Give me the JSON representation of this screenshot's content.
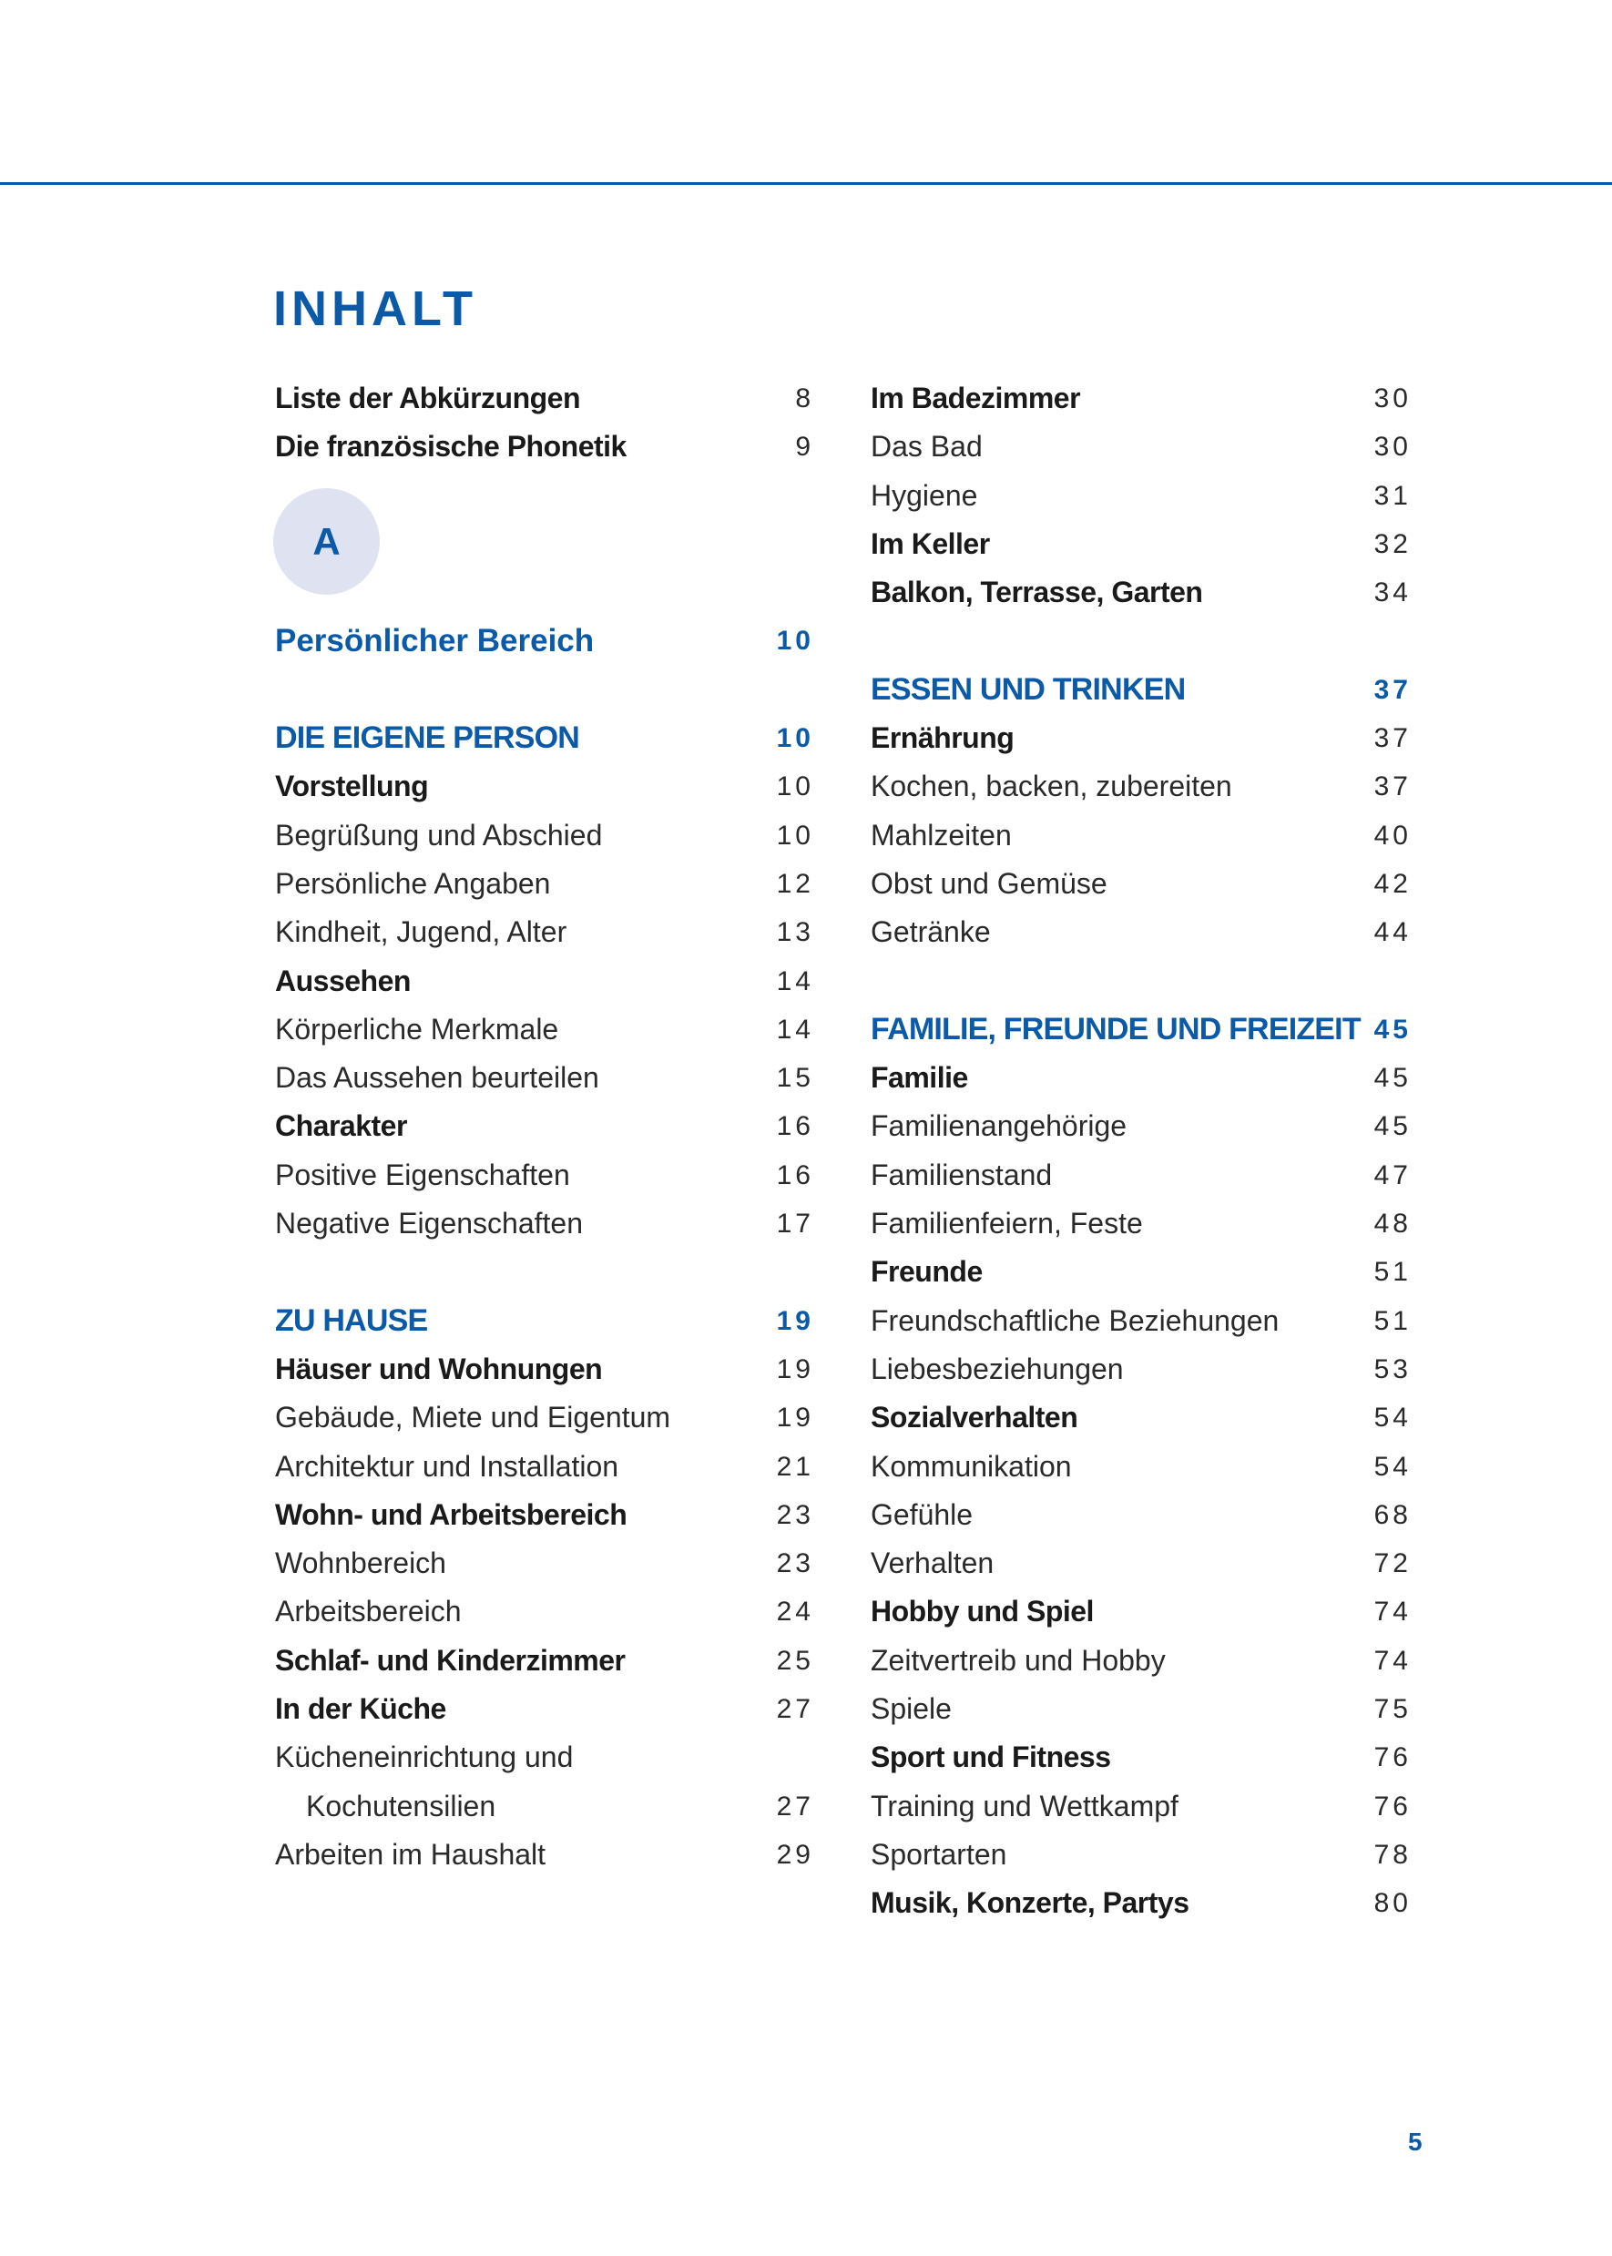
{
  "title": "INHALT",
  "accent_color": "#0b5aa8",
  "part_badge": "A",
  "page_number": "5",
  "left_column": [
    {
      "type": "bold",
      "label": "Liste der Abkürzungen",
      "page": "8"
    },
    {
      "type": "bold",
      "label": "Die französische Phonetik",
      "page": "9"
    },
    {
      "type": "badge"
    },
    {
      "type": "part",
      "label": "Persönlicher Bereich",
      "page": "10"
    },
    {
      "type": "spacer"
    },
    {
      "type": "section",
      "label": "DIE EIGENE PERSON",
      "page": "10"
    },
    {
      "type": "bold",
      "label": "Vorstellung",
      "page": "10"
    },
    {
      "type": "plain",
      "label": "Begrüßung und Abschied",
      "page": "10"
    },
    {
      "type": "plain",
      "label": "Persönliche Angaben",
      "page": "12"
    },
    {
      "type": "plain",
      "label": "Kindheit, Jugend, Alter",
      "page": "13"
    },
    {
      "type": "bold",
      "label": "Aussehen",
      "page": "14"
    },
    {
      "type": "plain",
      "label": "Körperliche Merkmale",
      "page": "14"
    },
    {
      "type": "plain",
      "label": "Das Aussehen beurteilen",
      "page": "15"
    },
    {
      "type": "bold",
      "label": "Charakter",
      "page": "16"
    },
    {
      "type": "plain",
      "label": "Positive Eigenschaften",
      "page": "16"
    },
    {
      "type": "plain",
      "label": "Negative Eigenschaften",
      "page": "17"
    },
    {
      "type": "spacer"
    },
    {
      "type": "section",
      "label": "ZU HAUSE",
      "page": "19"
    },
    {
      "type": "bold",
      "label": "Häuser und Wohnungen",
      "page": "19"
    },
    {
      "type": "plain",
      "label": "Gebäude, Miete und Eigentum",
      "page": "19"
    },
    {
      "type": "plain",
      "label": "Architektur und Installation",
      "page": "21"
    },
    {
      "type": "bold",
      "label": "Wohn- und Arbeitsbereich",
      "page": "23"
    },
    {
      "type": "plain",
      "label": "Wohnbereich",
      "page": "23"
    },
    {
      "type": "plain",
      "label": "Arbeitsbereich",
      "page": "24"
    },
    {
      "type": "bold",
      "label": "Schlaf- und Kinderzimmer",
      "page": "25"
    },
    {
      "type": "bold",
      "label": "In der Küche",
      "page": "27"
    },
    {
      "type": "plain",
      "label": "Kücheneinrichtung und",
      "page": ""
    },
    {
      "type": "plain indent",
      "label": "Kochutensilien",
      "page": "27"
    },
    {
      "type": "plain",
      "label": "Arbeiten im Haushalt",
      "page": "29"
    }
  ],
  "right_column": [
    {
      "type": "bold",
      "label": "Im Badezimmer",
      "page": "30"
    },
    {
      "type": "plain",
      "label": "Das Bad",
      "page": "30"
    },
    {
      "type": "plain",
      "label": "Hygiene",
      "page": "31"
    },
    {
      "type": "bold",
      "label": "Im Keller",
      "page": "32"
    },
    {
      "type": "bold",
      "label": "Balkon, Terrasse, Garten",
      "page": "34"
    },
    {
      "type": "spacer"
    },
    {
      "type": "section",
      "label": "ESSEN UND TRINKEN",
      "page": "37"
    },
    {
      "type": "bold",
      "label": "Ernährung",
      "page": "37"
    },
    {
      "type": "plain",
      "label": "Kochen, backen, zubereiten",
      "page": "37"
    },
    {
      "type": "plain",
      "label": "Mahlzeiten",
      "page": "40"
    },
    {
      "type": "plain",
      "label": "Obst und Gemüse",
      "page": "42"
    },
    {
      "type": "plain",
      "label": "Getränke",
      "page": "44"
    },
    {
      "type": "spacer"
    },
    {
      "type": "section",
      "label": "FAMILIE, FREUNDE UND FREIZEIT",
      "page": "45"
    },
    {
      "type": "bold",
      "label": "Familie",
      "page": "45"
    },
    {
      "type": "plain",
      "label": "Familienangehörige",
      "page": "45"
    },
    {
      "type": "plain",
      "label": "Familienstand",
      "page": "47"
    },
    {
      "type": "plain",
      "label": "Familienfeiern, Feste",
      "page": "48"
    },
    {
      "type": "bold",
      "label": "Freunde",
      "page": "51"
    },
    {
      "type": "plain",
      "label": "Freundschaftliche Beziehungen",
      "page": "51"
    },
    {
      "type": "plain",
      "label": "Liebesbeziehungen",
      "page": "53"
    },
    {
      "type": "bold",
      "label": "Sozialverhalten",
      "page": "54"
    },
    {
      "type": "plain",
      "label": "Kommunikation",
      "page": "54"
    },
    {
      "type": "plain",
      "label": "Gefühle",
      "page": "68"
    },
    {
      "type": "plain",
      "label": "Verhalten",
      "page": "72"
    },
    {
      "type": "bold",
      "label": "Hobby und Spiel",
      "page": "74"
    },
    {
      "type": "plain",
      "label": "Zeitvertreib und Hobby",
      "page": "74"
    },
    {
      "type": "plain",
      "label": "Spiele",
      "page": "75"
    },
    {
      "type": "bold",
      "label": "Sport und Fitness",
      "page": "76"
    },
    {
      "type": "plain",
      "label": "Training und Wettkampf",
      "page": "76"
    },
    {
      "type": "plain",
      "label": "Sportarten",
      "page": "78"
    },
    {
      "type": "bold",
      "label": "Musik, Konzerte, Partys",
      "page": "80"
    }
  ]
}
